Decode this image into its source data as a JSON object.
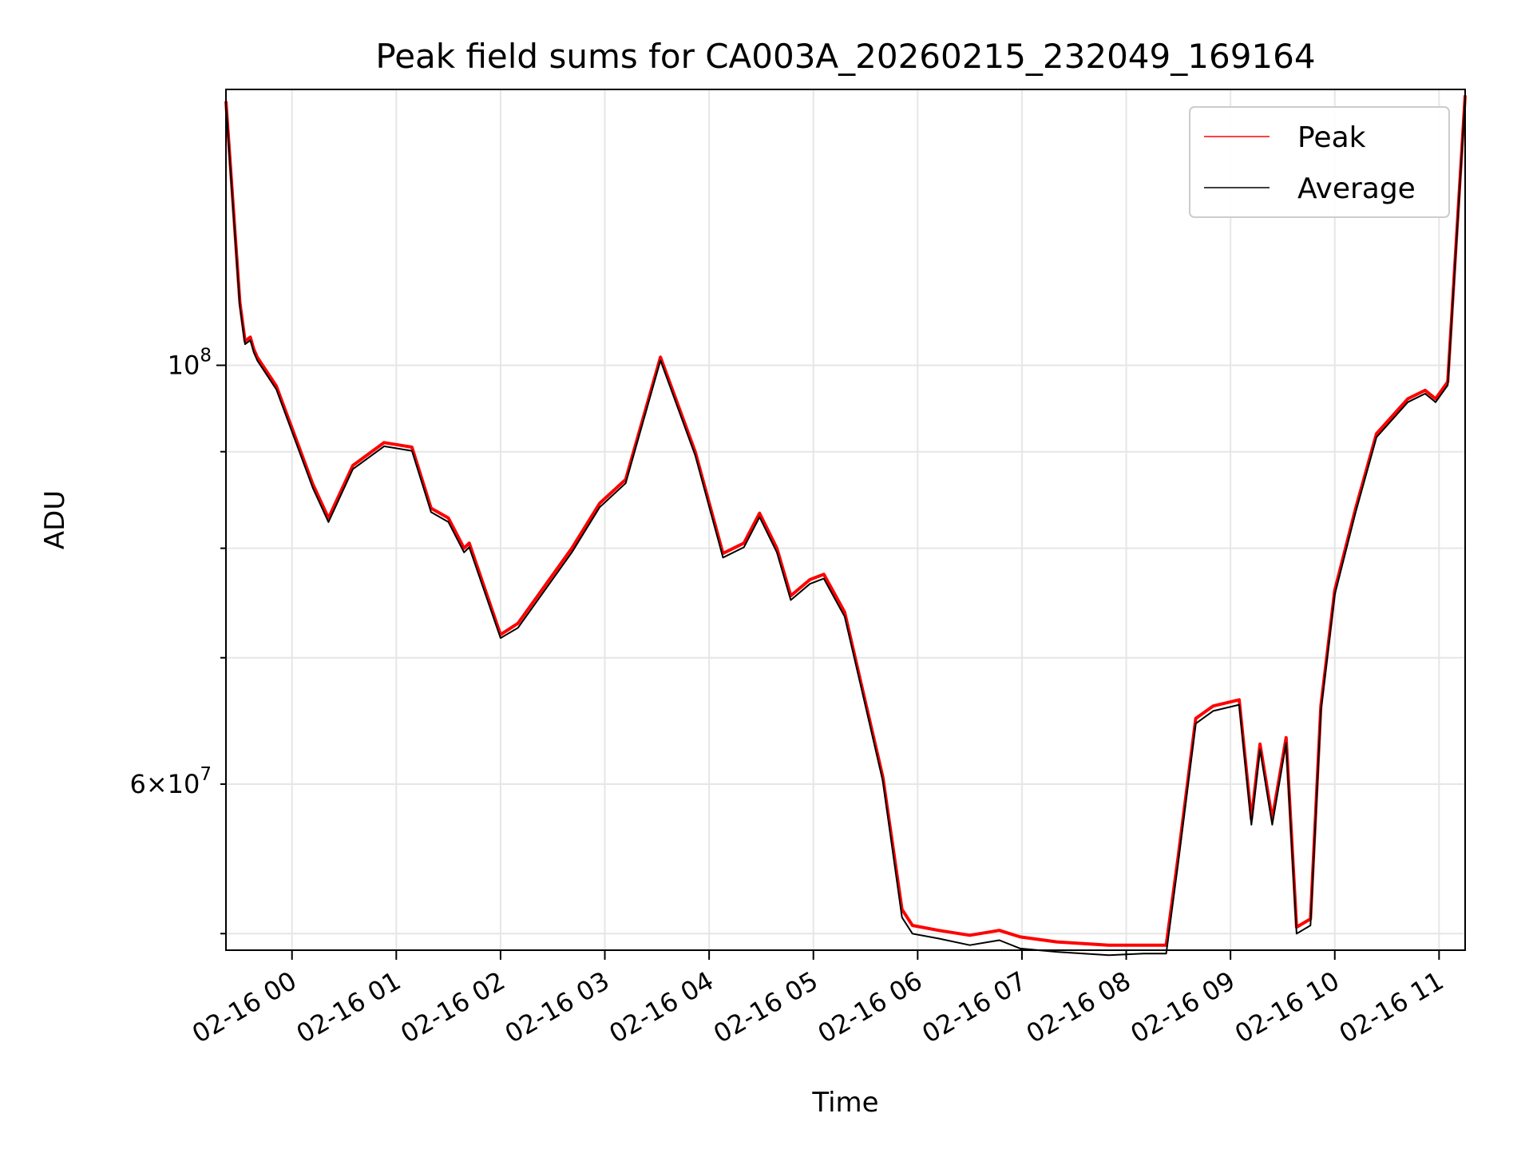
{
  "chart_data": {
    "type": "line",
    "title": "Peak field sums for CA003A_20260215_232049_169164",
    "xlabel": "Time",
    "ylabel": "ADU",
    "x_axis": {
      "kind": "datetime",
      "range": [
        "2026-02-15 23:22",
        "2026-02-16 11:15"
      ],
      "ticks": [
        "02-16 00",
        "02-16 01",
        "02-16 02",
        "02-16 03",
        "02-16 04",
        "02-16 05",
        "02-16 06",
        "02-16 07",
        "02-16 08",
        "02-16 09",
        "02-16 10",
        "02-16 11"
      ],
      "tick_rotation_deg": 30
    },
    "y_axis": {
      "scale": "log",
      "range": [
        49000000,
        140000000
      ],
      "major_ticks": [
        {
          "value": 100000000,
          "mantissa": "",
          "base": "10",
          "exp": "8"
        }
      ],
      "minor_ticks": [
        {
          "value": 60000000,
          "mantissa": "6",
          "base": "10",
          "exp": "7"
        }
      ],
      "unlabeled_minor_ticks": [
        50000000,
        70000000,
        80000000,
        90000000
      ]
    },
    "grid": true,
    "legend_position": "upper right",
    "series": [
      {
        "name": "Peak",
        "color": "#ff0000",
        "x": [
          "2026-02-15 23:22",
          "2026-02-15 23:30",
          "2026-02-15 23:33",
          "2026-02-15 23:36",
          "2026-02-15 23:38",
          "2026-02-15 23:40",
          "2026-02-15 23:51",
          "2026-02-16 00:12",
          "2026-02-16 00:21",
          "2026-02-16 00:35",
          "2026-02-16 00:53",
          "2026-02-16 01:09",
          "2026-02-16 01:20",
          "2026-02-16 01:30",
          "2026-02-16 01:39",
          "2026-02-16 01:42",
          "2026-02-16 02:00",
          "2026-02-16 02:10",
          "2026-02-16 02:41",
          "2026-02-16 02:57",
          "2026-02-16 03:12",
          "2026-02-16 03:32",
          "2026-02-16 03:52",
          "2026-02-16 04:08",
          "2026-02-16 04:20",
          "2026-02-16 04:29",
          "2026-02-16 04:39",
          "2026-02-16 04:47",
          "2026-02-16 04:58",
          "2026-02-16 05:06",
          "2026-02-16 05:18",
          "2026-02-16 05:28",
          "2026-02-16 05:40",
          "2026-02-16 05:51",
          "2026-02-16 05:57",
          "2026-02-16 06:12",
          "2026-02-16 06:30",
          "2026-02-16 06:47",
          "2026-02-16 06:59",
          "2026-02-16 07:20",
          "2026-02-16 07:50",
          "2026-02-16 08:10",
          "2026-02-16 08:23",
          "2026-02-16 08:30",
          "2026-02-16 08:40",
          "2026-02-16 08:50",
          "2026-02-16 09:05",
          "2026-02-16 09:12",
          "2026-02-16 09:17",
          "2026-02-16 09:24",
          "2026-02-16 09:32",
          "2026-02-16 09:38",
          "2026-02-16 09:46",
          "2026-02-16 09:52",
          "2026-02-16 10:00",
          "2026-02-16 10:12",
          "2026-02-16 10:24",
          "2026-02-16 10:42",
          "2026-02-16 10:52",
          "2026-02-16 10:58",
          "2026-02-16 11:05",
          "2026-02-16 11:15"
        ],
        "values": [
          138000000,
          108000000,
          103000000,
          103500000,
          102000000,
          101000000,
          97500000,
          86500000,
          83000000,
          88500000,
          91000000,
          90500000,
          84000000,
          83000000,
          80000000,
          80500000,
          72000000,
          73000000,
          80000000,
          84500000,
          87000000,
          101000000,
          90000000,
          79500000,
          80500000,
          83500000,
          80000000,
          75500000,
          77000000,
          77500000,
          74000000,
          67500000,
          60500000,
          51500000,
          50500000,
          50200000,
          49900000,
          50200000,
          49800000,
          49500000,
          49300000,
          49300000,
          49300000,
          55000000,
          65000000,
          66000000,
          66500000,
          57500000,
          63000000,
          57500000,
          63500000,
          50400000,
          50900000,
          66000000,
          76000000,
          84000000,
          92000000,
          96000000,
          97000000,
          96000000,
          98000000,
          139000000
        ]
      },
      {
        "name": "Average",
        "color": "#000000",
        "x": [
          "2026-02-15 23:22",
          "2026-02-15 23:30",
          "2026-02-15 23:33",
          "2026-02-15 23:36",
          "2026-02-15 23:38",
          "2026-02-15 23:40",
          "2026-02-15 23:51",
          "2026-02-16 00:12",
          "2026-02-16 00:21",
          "2026-02-16 00:35",
          "2026-02-16 00:53",
          "2026-02-16 01:09",
          "2026-02-16 01:20",
          "2026-02-16 01:30",
          "2026-02-16 01:39",
          "2026-02-16 01:42",
          "2026-02-16 02:00",
          "2026-02-16 02:10",
          "2026-02-16 02:41",
          "2026-02-16 02:57",
          "2026-02-16 03:12",
          "2026-02-16 03:32",
          "2026-02-16 03:52",
          "2026-02-16 04:08",
          "2026-02-16 04:20",
          "2026-02-16 04:29",
          "2026-02-16 04:39",
          "2026-02-16 04:47",
          "2026-02-16 04:58",
          "2026-02-16 05:06",
          "2026-02-16 05:18",
          "2026-02-16 05:28",
          "2026-02-16 05:40",
          "2026-02-16 05:51",
          "2026-02-16 05:57",
          "2026-02-16 06:12",
          "2026-02-16 06:30",
          "2026-02-16 06:47",
          "2026-02-16 06:59",
          "2026-02-16 07:20",
          "2026-02-16 07:50",
          "2026-02-16 08:10",
          "2026-02-16 08:23",
          "2026-02-16 08:30",
          "2026-02-16 08:40",
          "2026-02-16 08:50",
          "2026-02-16 09:05",
          "2026-02-16 09:12",
          "2026-02-16 09:17",
          "2026-02-16 09:24",
          "2026-02-16 09:32",
          "2026-02-16 09:38",
          "2026-02-16 09:46",
          "2026-02-16 09:52",
          "2026-02-16 10:00",
          "2026-02-16 10:12",
          "2026-02-16 10:24",
          "2026-02-16 10:42",
          "2026-02-16 10:52",
          "2026-02-16 10:58",
          "2026-02-16 11:05",
          "2026-02-16 11:15"
        ],
        "values": [
          137500000,
          107500000,
          102600000,
          103100000,
          101600000,
          100600000,
          97100000,
          86100000,
          82600000,
          88100000,
          90600000,
          90100000,
          83600000,
          82600000,
          79600000,
          80100000,
          71700000,
          72600000,
          79600000,
          84100000,
          86600000,
          100600000,
          89600000,
          79100000,
          80100000,
          83100000,
          79600000,
          75100000,
          76600000,
          77100000,
          73600000,
          67200000,
          60200000,
          51000000,
          50000000,
          49700000,
          49300000,
          49600000,
          49100000,
          48900000,
          48700000,
          48800000,
          48800000,
          54600000,
          64600000,
          65600000,
          66100000,
          57100000,
          62600000,
          57100000,
          63100000,
          50000000,
          50500000,
          65600000,
          75600000,
          83600000,
          91600000,
          95600000,
          96600000,
          95600000,
          97600000,
          138500000
        ]
      }
    ]
  }
}
